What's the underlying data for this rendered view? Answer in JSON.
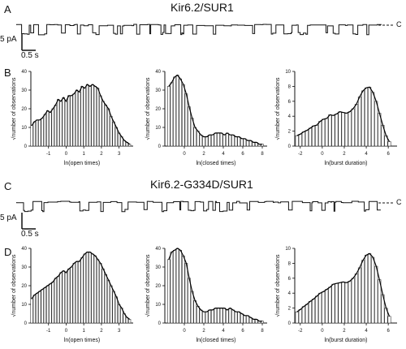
{
  "panels": {
    "A": {
      "letter": "A",
      "title": "Kir6.2/SUR1",
      "scale_y": "5 pA",
      "scale_x": "0.5 s",
      "closed_marker": "C"
    },
    "B": {
      "letter": "B"
    },
    "C": {
      "letter": "C",
      "title": "Kir6.2-G334D/SUR1",
      "scale_y": "5 pA",
      "scale_x": "0.5 s",
      "closed_marker": "C"
    },
    "D": {
      "letter": "D"
    }
  },
  "chart_data": [
    {
      "id": "B-open",
      "type": "bar",
      "xlabel": "ln(open times)",
      "ylabel": "√number of observations",
      "xlim": [
        -2,
        3.8
      ],
      "ylim": [
        0,
        40
      ],
      "xticks": [
        -1,
        0,
        1,
        2,
        3
      ],
      "yticks": [
        0,
        10,
        20,
        30,
        40
      ],
      "x": [
        -1.95,
        -1.8,
        -1.65,
        -1.5,
        -1.35,
        -1.2,
        -1.05,
        -0.9,
        -0.75,
        -0.6,
        -0.45,
        -0.3,
        -0.15,
        0,
        0.15,
        0.3,
        0.45,
        0.6,
        0.75,
        0.9,
        1.05,
        1.2,
        1.35,
        1.5,
        1.65,
        1.8,
        1.95,
        2.1,
        2.25,
        2.4,
        2.55,
        2.7,
        2.85,
        3,
        3.15,
        3.3,
        3.45,
        3.6
      ],
      "values": [
        11,
        13,
        14,
        14,
        15,
        17,
        19,
        18,
        20,
        22,
        25,
        24,
        26,
        24,
        27,
        27,
        28,
        30,
        29,
        32,
        31,
        33,
        32,
        33,
        32,
        31,
        27,
        24,
        22,
        20,
        16,
        13,
        10,
        7,
        5,
        3,
        2,
        1
      ]
    },
    {
      "id": "B-closed",
      "type": "bar",
      "xlabel": "ln(closed times)",
      "ylabel": "√number of observations",
      "xlim": [
        -2,
        8.5
      ],
      "ylim": [
        0,
        40
      ],
      "xticks": [
        0,
        2,
        4,
        6,
        8
      ],
      "yticks": [
        0,
        10,
        20,
        30,
        40
      ],
      "x": [
        -1.6,
        -1.3,
        -1,
        -0.7,
        -0.4,
        -0.1,
        0.2,
        0.5,
        0.8,
        1.1,
        1.4,
        1.7,
        2,
        2.3,
        2.6,
        2.9,
        3.2,
        3.5,
        3.8,
        4.1,
        4.4,
        4.7,
        5,
        5.3,
        5.6,
        5.9,
        6.2,
        6.5,
        6.8,
        7.1,
        7.4,
        7.7,
        8
      ],
      "values": [
        32,
        34,
        37,
        38,
        36,
        33,
        28,
        21,
        15,
        10,
        8,
        6,
        5,
        5,
        6,
        6,
        7,
        7,
        7,
        6,
        7,
        6,
        6,
        5,
        5,
        4,
        4,
        3,
        3,
        2,
        2,
        1,
        1
      ]
    },
    {
      "id": "B-burst",
      "type": "bar",
      "xlabel": "ln(burst duration)",
      "ylabel": "√number of observations",
      "xlim": [
        -2.5,
        6.8
      ],
      "ylim": [
        0,
        10
      ],
      "xticks": [
        -2,
        0,
        2,
        4,
        6
      ],
      "yticks": [
        0,
        2,
        4,
        6,
        8,
        10
      ],
      "x": [
        -2.3,
        -2,
        -1.7,
        -1.4,
        -1.1,
        -0.8,
        -0.5,
        -0.2,
        0.1,
        0.4,
        0.7,
        1,
        1.3,
        1.6,
        1.9,
        2.2,
        2.5,
        2.8,
        3.1,
        3.4,
        3.7,
        4,
        4.3,
        4.6,
        4.9,
        5.2,
        5.5,
        5.8,
        6.1
      ],
      "values": [
        1.4,
        1.6,
        1.9,
        2.1,
        2.4,
        2.7,
        2.8,
        3.3,
        3.6,
        3.7,
        4.2,
        4.1,
        4.3,
        4.6,
        4.5,
        4.4,
        4.6,
        5,
        5.6,
        6.6,
        7.4,
        7.8,
        7.9,
        7.2,
        6,
        4.4,
        2.8,
        1.4,
        0.6
      ]
    },
    {
      "id": "D-open",
      "type": "bar",
      "xlabel": "ln(open times)",
      "ylabel": "√number of observations",
      "xlim": [
        -2,
        3.8
      ],
      "ylim": [
        0,
        40
      ],
      "xticks": [
        -1,
        0,
        1,
        2,
        3
      ],
      "yticks": [
        0,
        10,
        20,
        30,
        40
      ],
      "x": [
        -1.95,
        -1.8,
        -1.65,
        -1.5,
        -1.35,
        -1.2,
        -1.05,
        -0.9,
        -0.75,
        -0.6,
        -0.45,
        -0.3,
        -0.15,
        0,
        0.15,
        0.3,
        0.45,
        0.6,
        0.75,
        0.9,
        1.05,
        1.2,
        1.35,
        1.5,
        1.65,
        1.8,
        1.95,
        2.1,
        2.25,
        2.4,
        2.55,
        2.7,
        2.85,
        3,
        3.15,
        3.3,
        3.45,
        3.6
      ],
      "values": [
        13,
        15,
        16,
        17,
        18,
        19,
        20,
        21,
        22,
        24,
        25,
        27,
        28,
        27,
        29,
        30,
        32,
        33,
        33,
        35,
        37,
        38,
        38,
        37,
        36,
        34,
        32,
        29,
        26,
        23,
        20,
        17,
        14,
        10,
        8,
        5,
        3,
        2
      ]
    },
    {
      "id": "D-closed",
      "type": "bar",
      "xlabel": "ln(closed times)",
      "ylabel": "√number of observations",
      "xlim": [
        -2,
        8.5
      ],
      "ylim": [
        0,
        40
      ],
      "xticks": [
        0,
        2,
        4,
        6,
        8
      ],
      "yticks": [
        0,
        10,
        20,
        30,
        40
      ],
      "x": [
        -1.6,
        -1.3,
        -1,
        -0.7,
        -0.4,
        -0.1,
        0.2,
        0.5,
        0.8,
        1.1,
        1.4,
        1.7,
        2,
        2.3,
        2.6,
        2.9,
        3.2,
        3.5,
        3.8,
        4.1,
        4.4,
        4.7,
        5,
        5.3,
        5.6,
        5.9,
        6.2,
        6.5,
        6.8,
        7.1,
        7.4,
        7.7,
        8
      ],
      "values": [
        34,
        38,
        39,
        40,
        39,
        36,
        32,
        24,
        17,
        12,
        9,
        7,
        6,
        6,
        7,
        7,
        8,
        8,
        8,
        8,
        7,
        8,
        7,
        6,
        6,
        5,
        4,
        4,
        3,
        2,
        2,
        1,
        1
      ]
    },
    {
      "id": "D-burst",
      "type": "bar",
      "xlabel": "ln(burst duration)",
      "ylabel": "√number of observations",
      "xlim": [
        -2.5,
        6.8
      ],
      "ylim": [
        0,
        10
      ],
      "xticks": [
        -2,
        0,
        2,
        4,
        6
      ],
      "yticks": [
        0,
        2,
        4,
        6,
        8,
        10
      ],
      "x": [
        -2.3,
        -2,
        -1.7,
        -1.4,
        -1.1,
        -0.8,
        -0.5,
        -0.2,
        0.1,
        0.4,
        0.7,
        1,
        1.3,
        1.6,
        1.9,
        2.2,
        2.5,
        2.8,
        3.1,
        3.4,
        3.7,
        4,
        4.3,
        4.6,
        4.9,
        5.2,
        5.5,
        5.8,
        6.1
      ],
      "values": [
        1.5,
        1.8,
        2.2,
        2.5,
        2.9,
        3.2,
        3.6,
        4,
        4.2,
        4.5,
        4.8,
        5.2,
        5.3,
        5.4,
        5.5,
        5.4,
        5.6,
        6,
        6.6,
        7.4,
        8.4,
        9.1,
        9.3,
        8.8,
        7.6,
        5.8,
        3.8,
        2,
        0.9
      ]
    }
  ]
}
